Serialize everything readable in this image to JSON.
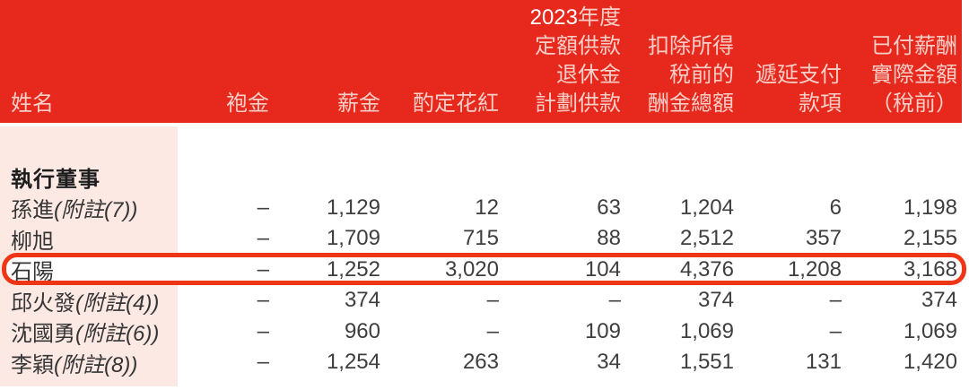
{
  "colors": {
    "header_bg": "#e7281c",
    "header_text": "#f7cfc8",
    "header_text_bright": "#ffffff",
    "name_band_bg": "#fce9e3",
    "highlight_border": "#ee3617",
    "body_text": "#3e3e3e"
  },
  "header": {
    "cols": [
      {
        "label": "姓名"
      },
      {
        "label": "袍金"
      },
      {
        "label": "薪金"
      },
      {
        "label": "酌定花紅"
      },
      {
        "year": "2023",
        "year_suffix": "年度",
        "lines": [
          "定額供款",
          "退休金",
          "計劃供款"
        ]
      },
      {
        "lines": [
          "扣除所得",
          "稅前的",
          "酬金總額"
        ]
      },
      {
        "lines": [
          "遞延支付",
          "款項"
        ]
      },
      {
        "lines": [
          "已付薪酬",
          "實際金額",
          "（稅前）"
        ]
      }
    ]
  },
  "section": {
    "title": "執行董事"
  },
  "rows": [
    {
      "name": "孫進",
      "note": "(附註(7))",
      "values": [
        "–",
        "1,129",
        "12",
        "63",
        "1,204",
        "6",
        "1,198"
      ]
    },
    {
      "name": "柳旭",
      "note": "",
      "values": [
        "–",
        "1,709",
        "715",
        "88",
        "2,512",
        "357",
        "2,155"
      ]
    },
    {
      "name": "石陽",
      "note": "",
      "highlighted": true,
      "values": [
        "–",
        "1,252",
        "3,020",
        "104",
        "4,376",
        "1,208",
        "3,168"
      ]
    },
    {
      "name": "邱火發",
      "note": "(附註(4))",
      "values": [
        "–",
        "374",
        "–",
        "–",
        "374",
        "–",
        "374"
      ]
    },
    {
      "name": "沈國勇",
      "note": "(附註(6))",
      "values": [
        "–",
        "960",
        "–",
        "109",
        "1,069",
        "–",
        "1,069"
      ]
    },
    {
      "name": "李穎",
      "note": "(附註(8))",
      "values": [
        "–",
        "1,254",
        "263",
        "34",
        "1,551",
        "131",
        "1,420"
      ]
    }
  ]
}
